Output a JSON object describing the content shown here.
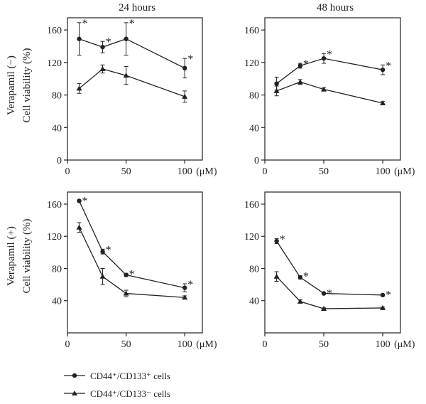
{
  "figure": {
    "row_labels": [
      {
        "line1": "Verapamil (−)",
        "line2": "Cell viability (%)"
      },
      {
        "line1": "Verapamil (+)",
        "line2": "Cell viability (%)"
      }
    ],
    "col_titles": [
      "24 hours",
      "48 hours"
    ],
    "x_unit": "(μM)",
    "legend": [
      {
        "label": "CD44⁺/CD133⁺ cells",
        "marker": "circle"
      },
      {
        "label": "CD44⁺/CD133⁻ cells",
        "marker": "triangle"
      }
    ]
  },
  "chart_data": [
    {
      "type": "line",
      "title": "24 hours",
      "row_label": "Verapamil (−) Cell viability (%)",
      "x": [
        10,
        30,
        50,
        100
      ],
      "xlim": [
        0,
        115
      ],
      "xticks": [
        0,
        50,
        100
      ],
      "xunit": "(μM)",
      "ylim": [
        0,
        175
      ],
      "yticks": [
        0,
        40,
        80,
        120,
        160
      ],
      "series": [
        {
          "name": "CD44⁺/CD133⁺ cells",
          "marker": "circle",
          "values": [
            149,
            139,
            149,
            113
          ],
          "errors": [
            20,
            7,
            20,
            12
          ],
          "significant": [
            true,
            true,
            true,
            true
          ]
        },
        {
          "name": "CD44⁺/CD133⁻ cells",
          "marker": "triangle",
          "values": [
            88,
            112,
            104,
            78
          ],
          "errors": [
            6,
            5,
            11,
            7
          ],
          "significant": [
            false,
            false,
            false,
            false
          ]
        }
      ]
    },
    {
      "type": "line",
      "title": "48 hours",
      "row_label": "Verapamil (−) Cell viability (%)",
      "x": [
        10,
        30,
        50,
        100
      ],
      "xlim": [
        0,
        115
      ],
      "xticks": [
        0,
        50,
        100
      ],
      "xunit": "(μM)",
      "ylim": [
        0,
        175
      ],
      "yticks": [
        0,
        40,
        80,
        120,
        160
      ],
      "series": [
        {
          "name": "CD44⁺/CD133⁺ cells",
          "marker": "circle",
          "values": [
            94,
            116,
            125,
            111
          ],
          "errors": [
            8,
            3,
            6,
            6
          ],
          "significant": [
            false,
            true,
            true,
            true
          ]
        },
        {
          "name": "CD44⁺/CD133⁻ cells",
          "marker": "triangle",
          "values": [
            85,
            96,
            87,
            70
          ],
          "errors": [
            6,
            3,
            2,
            2
          ],
          "significant": [
            false,
            false,
            false,
            false
          ]
        }
      ]
    },
    {
      "type": "line",
      "title": "",
      "row_label": "Verapamil (+) Cell viability (%)",
      "x": [
        10,
        30,
        50,
        100
      ],
      "xlim": [
        0,
        115
      ],
      "xticks": [
        0,
        50,
        100
      ],
      "xunit": "(μM)",
      "ylim": [
        0,
        175
      ],
      "yticks": [
        40,
        80,
        120,
        160
      ],
      "series": [
        {
          "name": "CD44⁺/CD133⁺ cells",
          "marker": "circle",
          "values": [
            164,
            101,
            72,
            56
          ],
          "errors": [
            1,
            3,
            2,
            5
          ],
          "significant": [
            true,
            true,
            true,
            true
          ]
        },
        {
          "name": "CD44⁺/CD133⁻ cells",
          "marker": "triangle",
          "values": [
            131,
            70,
            49,
            44
          ],
          "errors": [
            6,
            10,
            4,
            2
          ],
          "significant": [
            false,
            false,
            false,
            false
          ]
        }
      ]
    },
    {
      "type": "line",
      "title": "",
      "row_label": "Verapamil (+) Cell viability (%)",
      "x": [
        10,
        30,
        50,
        100
      ],
      "xlim": [
        0,
        115
      ],
      "xticks": [
        0,
        50,
        100
      ],
      "xunit": "(μM)",
      "ylim": [
        0,
        175
      ],
      "yticks": [
        40,
        80,
        120,
        160
      ],
      "series": [
        {
          "name": "CD44⁺/CD133⁺ cells",
          "marker": "circle",
          "values": [
            114,
            69,
            49,
            47
          ],
          "errors": [
            3,
            2,
            1,
            1
          ],
          "significant": [
            true,
            true,
            true,
            true
          ]
        },
        {
          "name": "CD44⁺/CD133⁻ cells",
          "marker": "triangle",
          "values": [
            70,
            39,
            30,
            31
          ],
          "errors": [
            6,
            2,
            1,
            1
          ],
          "significant": [
            false,
            false,
            false,
            false
          ]
        }
      ]
    }
  ]
}
